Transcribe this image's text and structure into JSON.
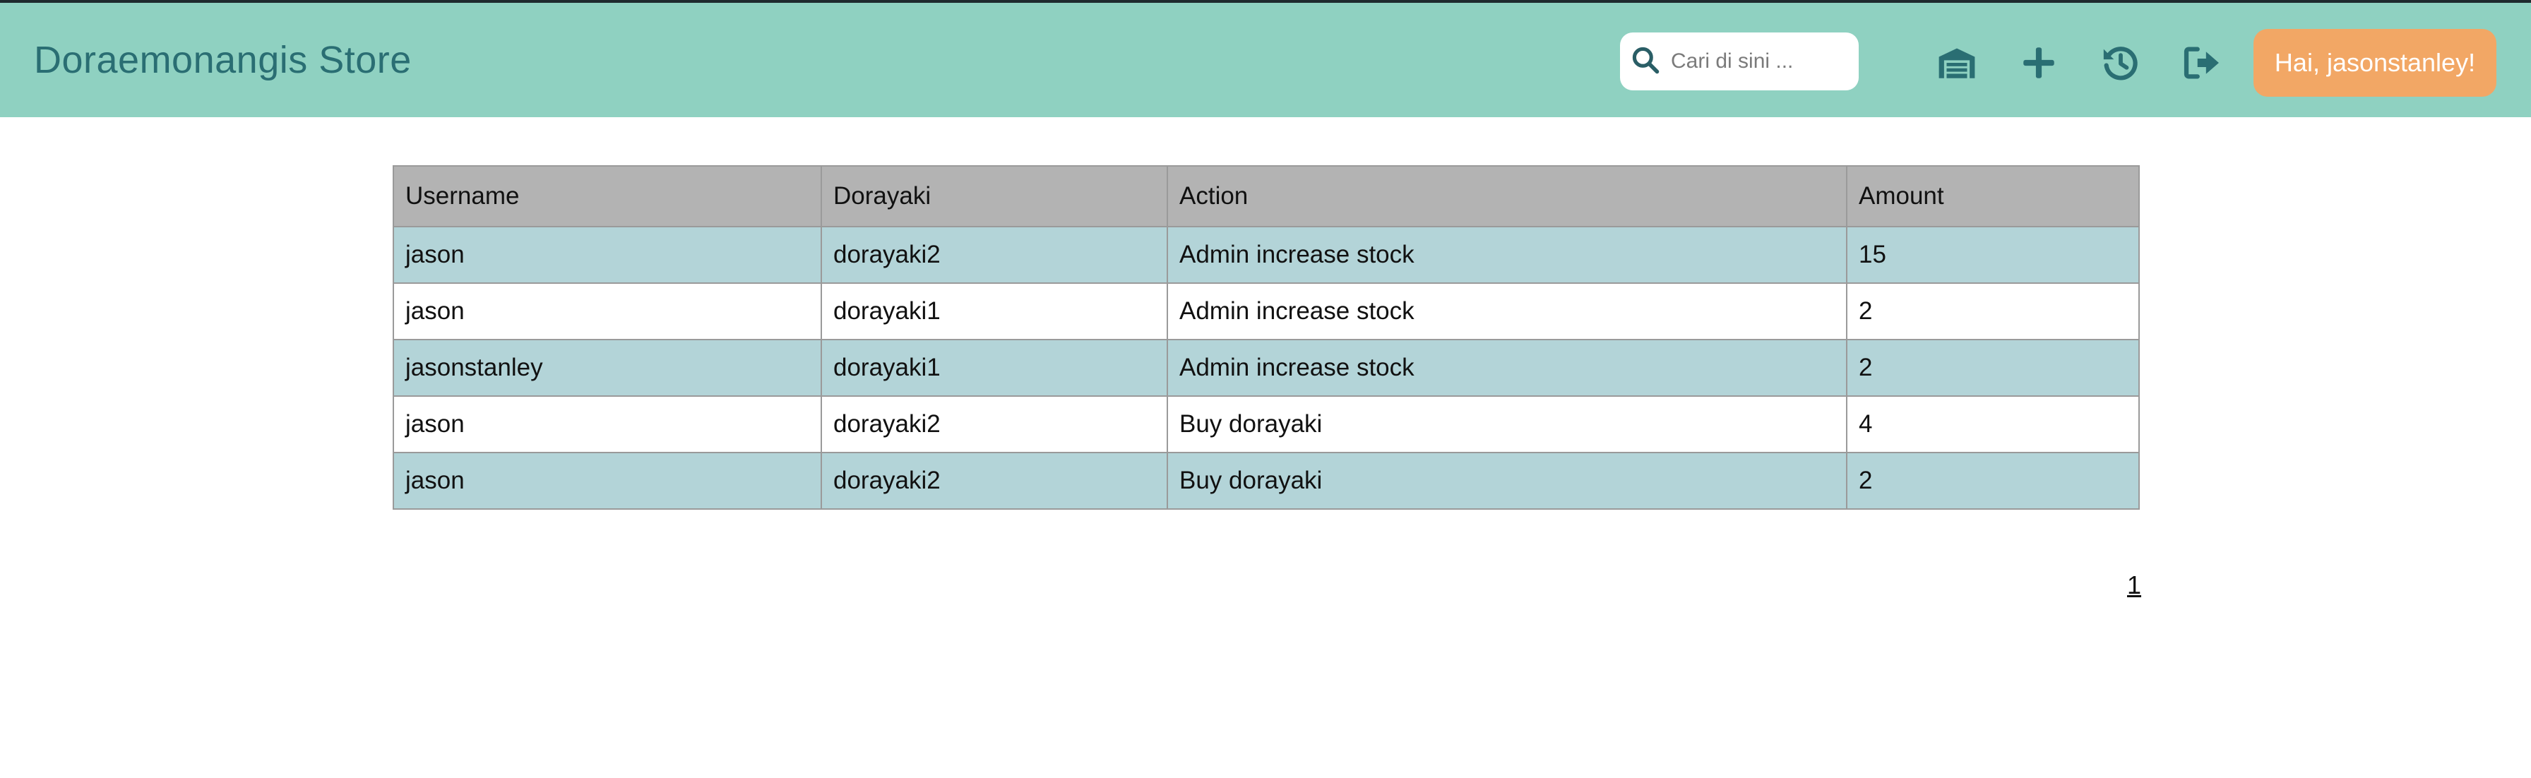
{
  "header": {
    "brand": "Doraemonangis Store",
    "search_placeholder": "Cari di sini ...",
    "icons": [
      "warehouse-icon",
      "plus-icon",
      "history-icon",
      "sign-out-icon"
    ],
    "greeting": "Hai, jasonstanley!",
    "colors": {
      "navbar": "#8fd1c1",
      "brand_text": "#2a6e73",
      "greeting_button": "#f2a765"
    }
  },
  "table": {
    "columns": [
      "Username",
      "Dorayaki",
      "Action",
      "Amount"
    ],
    "rows": [
      [
        "jason",
        "dorayaki2",
        "Admin increase stock",
        "15"
      ],
      [
        "jason",
        "dorayaki1",
        "Admin increase stock",
        "2"
      ],
      [
        "jasonstanley",
        "dorayaki1",
        "Admin increase stock",
        "2"
      ],
      [
        "jason",
        "dorayaki2",
        "Buy dorayaki",
        "4"
      ],
      [
        "jason",
        "dorayaki2",
        "Buy dorayaki",
        "2"
      ]
    ]
  },
  "pagination": {
    "current_page": "1"
  }
}
